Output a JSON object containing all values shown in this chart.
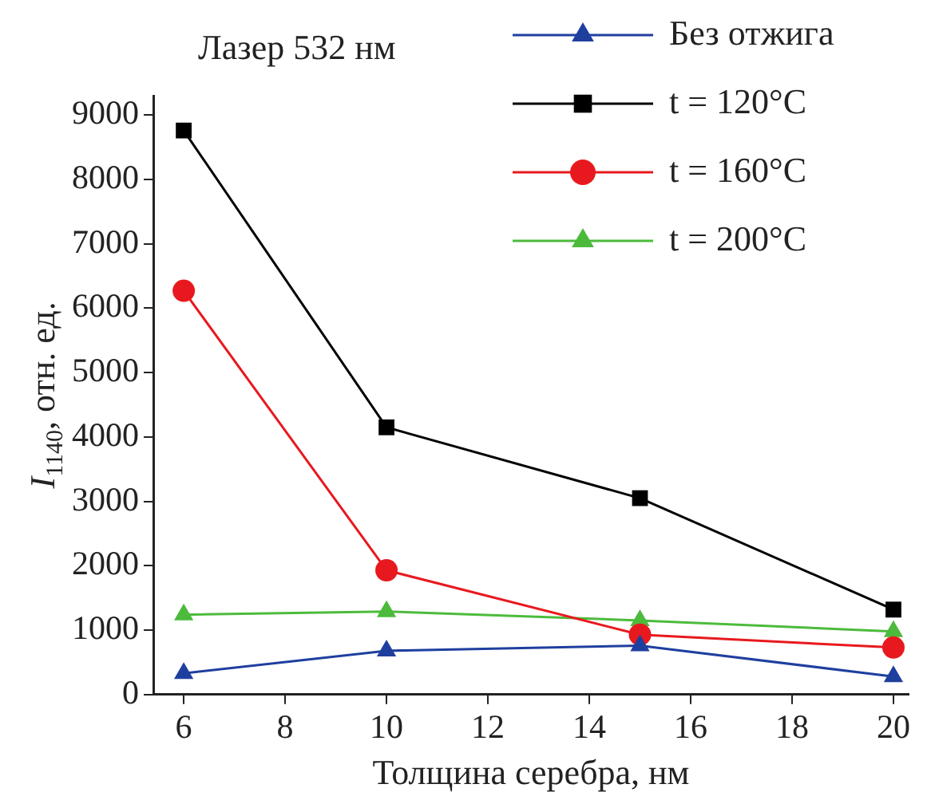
{
  "chart_data": {
    "type": "line",
    "xlabel": "Толщина серебра, нм",
    "ylabel": "I$_{1140}$, отн. ед.",
    "annotations": [
      "Лазер 532 нм"
    ],
    "xlim": [
      5.4,
      20.3
    ],
    "xticks": [
      6,
      8,
      10,
      12,
      14,
      16,
      18,
      20
    ],
    "ylim": [
      0,
      9300
    ],
    "yticks": [
      0,
      1000,
      2000,
      3000,
      4000,
      5000,
      6000,
      7000,
      8000,
      9000
    ],
    "grid": false,
    "legend": "top right",
    "line_style": "solid",
    "series": [
      {
        "name": "Без отжига",
        "color": "#1f3f9f",
        "marker": "triangle",
        "x": [
          6,
          10,
          15,
          20
        ],
        "values": [
          330,
          680,
          760,
          280
        ]
      },
      {
        "name": "t = 120°C",
        "color": "#000000",
        "marker": "square",
        "x": [
          6,
          10,
          15,
          20
        ],
        "values": [
          8760,
          4150,
          3050,
          1320
        ]
      },
      {
        "name": "t = 160°C",
        "color": "#e8191e",
        "marker": "circle",
        "x": [
          6,
          10,
          15,
          20
        ],
        "values": [
          6270,
          1930,
          930,
          730
        ]
      },
      {
        "name": "t = 200°C",
        "color": "#4cbb3c",
        "marker": "triangle",
        "x": [
          6,
          10,
          15,
          20
        ],
        "values": [
          1240,
          1290,
          1150,
          980
        ]
      }
    ]
  }
}
